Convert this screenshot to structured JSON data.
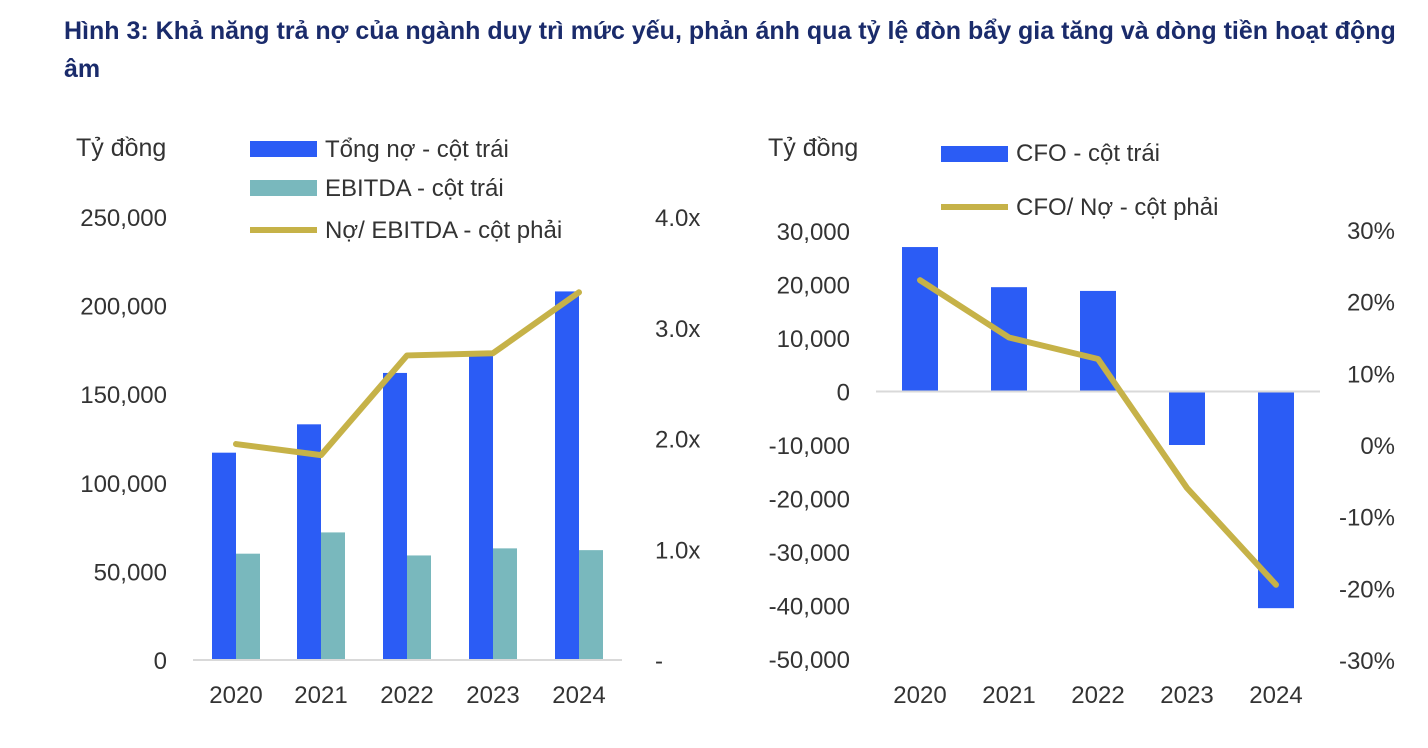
{
  "figure": {
    "title": "Hình 3: Khả năng trả nợ của ngành duy trì mức yếu, phản ánh qua tỷ lệ đòn bẩy gia tăng và dòng tiền hoạt động âm"
  },
  "colors": {
    "title": "#1a2b6b",
    "debt_bar": "#2b5cf5",
    "ebitda_bar": "#79b8bd",
    "line": "#c6b248",
    "axis": "#d9d9d9",
    "text": "#333333"
  },
  "chart_data": [
    {
      "type": "bar+line",
      "unit_label": "Tỷ đồng",
      "categories": [
        "2020",
        "2021",
        "2022",
        "2023",
        "2024"
      ],
      "series": [
        {
          "name": "Tổng nợ - cột trái",
          "kind": "bar",
          "axis": "left",
          "values": [
            117000,
            133000,
            162000,
            172000,
            208000
          ]
        },
        {
          "name": "EBITDA - cột trái",
          "kind": "bar",
          "axis": "left",
          "values": [
            60000,
            72000,
            59000,
            63000,
            62000
          ]
        },
        {
          "name": "Nợ/ EBITDA - cột phải",
          "kind": "line",
          "axis": "right",
          "values": [
            1.95,
            1.85,
            2.75,
            2.77,
            3.32
          ]
        }
      ],
      "y_left": {
        "min": 0,
        "max": 250000,
        "ticks": [
          0,
          50000,
          100000,
          150000,
          200000,
          250000
        ],
        "tick_labels": [
          "0",
          "50,000",
          "100,000",
          "150,000",
          "200,000",
          "250,000"
        ]
      },
      "y_right": {
        "min": 0,
        "max": 4,
        "ticks": [
          0,
          1,
          2,
          3,
          4
        ],
        "tick_labels": [
          "-",
          "1.0x",
          "2.0x",
          "3.0x",
          "4.0x"
        ]
      },
      "legend_position": "top"
    },
    {
      "type": "bar+line",
      "unit_label": "Tỷ đồng",
      "categories": [
        "2020",
        "2021",
        "2022",
        "2023",
        "2024"
      ],
      "series": [
        {
          "name": "CFO - cột trái",
          "kind": "bar",
          "axis": "left",
          "values": [
            27000,
            19500,
            18800,
            -10000,
            -40500
          ]
        },
        {
          "name": "CFO/ Nợ - cột phải",
          "kind": "line",
          "axis": "right",
          "values": [
            23,
            15,
            12,
            -6,
            -19.5
          ]
        }
      ],
      "y_left": {
        "min": -50000,
        "max": 30000,
        "ticks": [
          -50000,
          -40000,
          -30000,
          -20000,
          -10000,
          0,
          10000,
          20000,
          30000
        ],
        "tick_labels": [
          "-50,000",
          "-40,000",
          "-30,000",
          "-20,000",
          "-10,000",
          "0",
          "10,000",
          "20,000",
          "30,000"
        ]
      },
      "y_right": {
        "min": -30,
        "max": 30,
        "ticks": [
          -30,
          -20,
          -10,
          0,
          10,
          20,
          30
        ],
        "tick_labels": [
          "-30%",
          "-20%",
          "-10%",
          "0%",
          "10%",
          "20%",
          "30%"
        ]
      },
      "legend_position": "top"
    }
  ]
}
